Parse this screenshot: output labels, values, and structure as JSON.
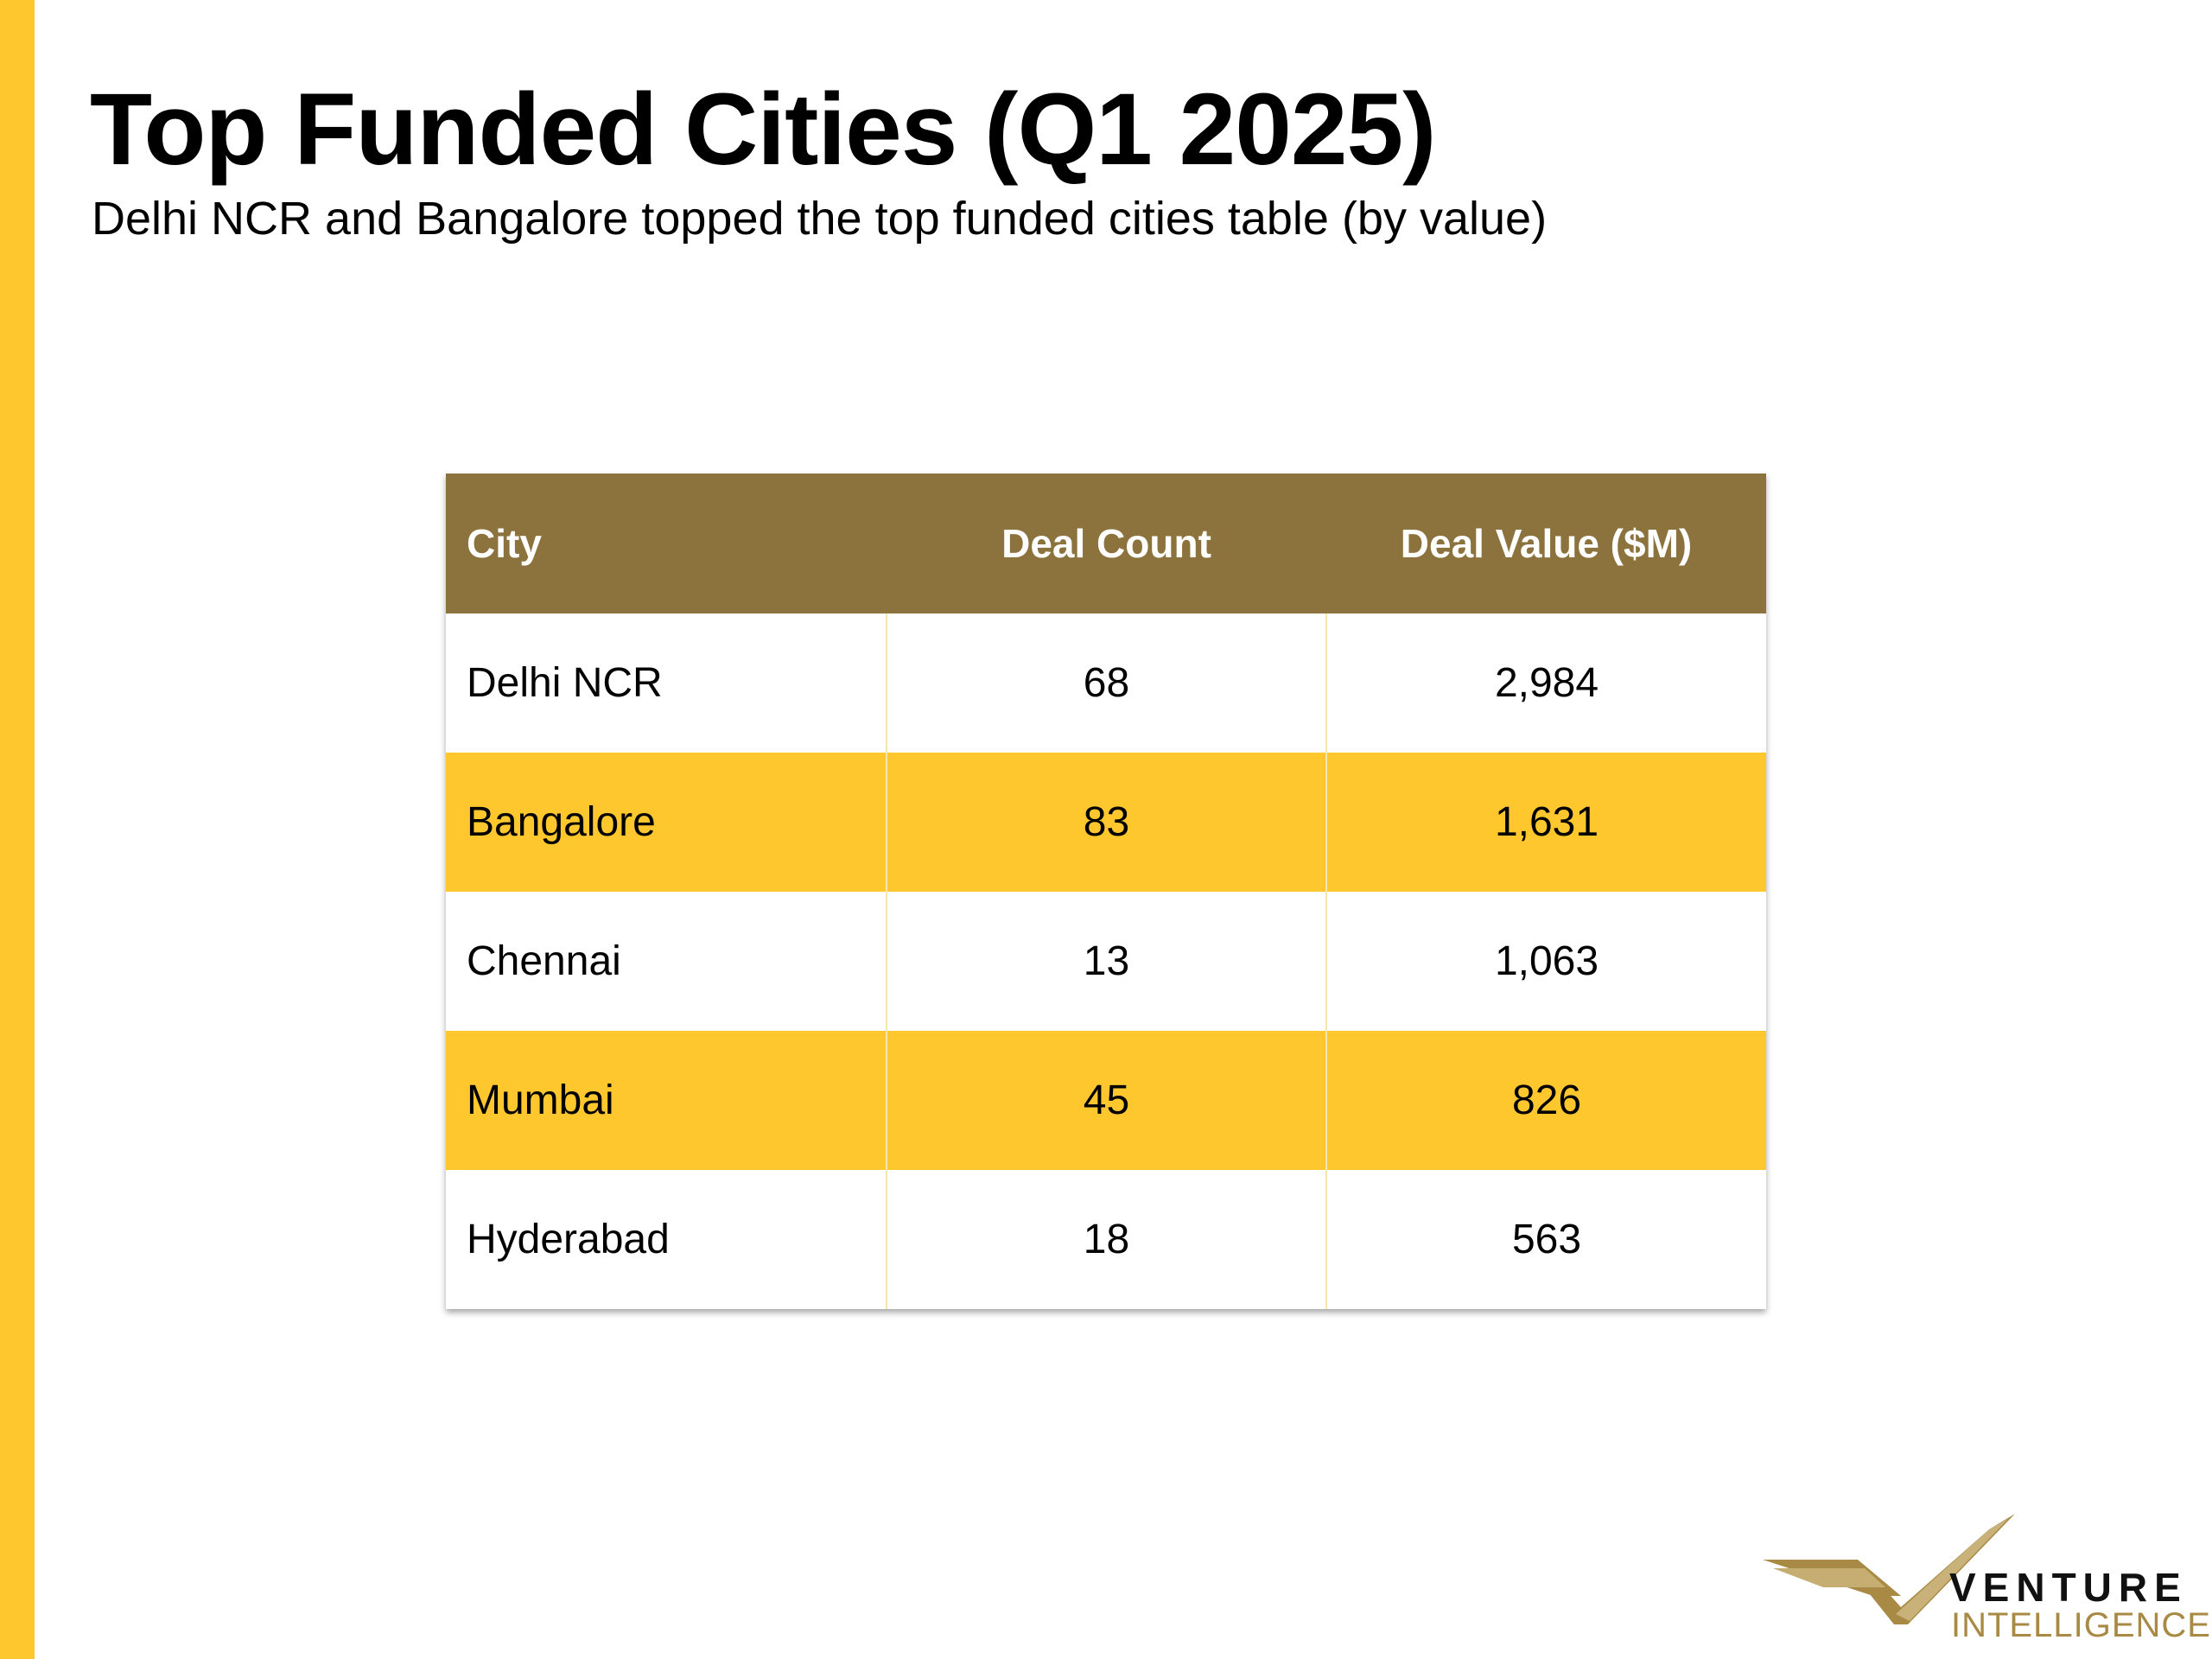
{
  "header": {
    "title": "Top Funded Cities (Q1 2025)",
    "subtitle": "Delhi NCR and Bangalore topped the top funded cities table (by value)"
  },
  "table": {
    "columns": [
      "City",
      "Deal Count",
      "Deal Value ($M)"
    ],
    "rows": [
      {
        "city": "Delhi NCR",
        "deal_count": "68",
        "deal_value": "2,984"
      },
      {
        "city": "Bangalore",
        "deal_count": "83",
        "deal_value": "1,631"
      },
      {
        "city": "Chennai",
        "deal_count": "13",
        "deal_value": "1,063"
      },
      {
        "city": "Mumbai",
        "deal_count": "45",
        "deal_value": "826"
      },
      {
        "city": "Hyderabad",
        "deal_count": "18",
        "deal_value": "563"
      }
    ]
  },
  "logo": {
    "line1": "VENTURE",
    "line2": "INTELLIGENCE"
  },
  "colors": {
    "accent_yellow": "#FFC72E",
    "header_brown": "#8C733E",
    "logo_gold": "#A98A45"
  }
}
